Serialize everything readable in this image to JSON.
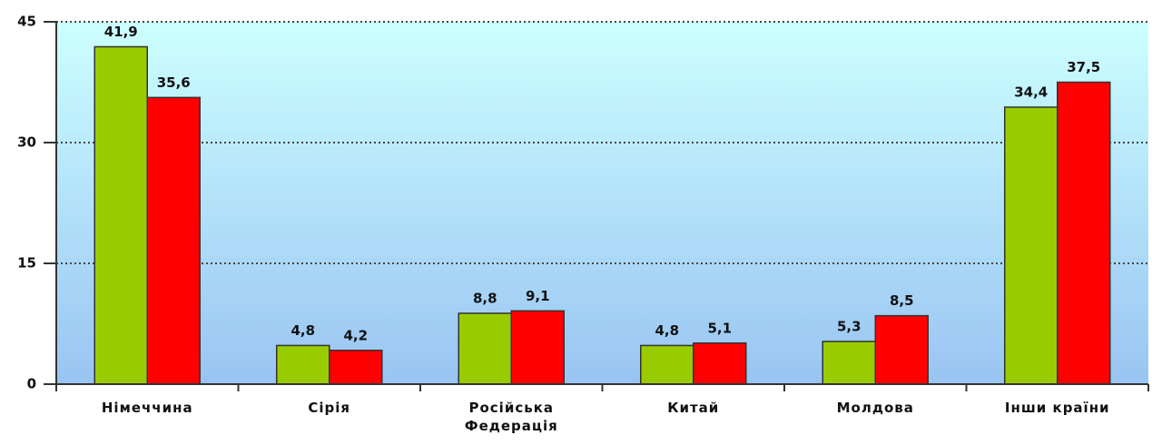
{
  "chart_data": {
    "type": "bar",
    "categories": [
      "Німеччина",
      "Сірія",
      "Російська Федерація",
      "Китай",
      "Молдова",
      "Інши країни"
    ],
    "series": [
      {
        "color": "#99cc00",
        "values": [
          41.9,
          4.8,
          8.8,
          4.8,
          5.3,
          34.4
        ],
        "value_labels": [
          "41,9",
          "4,8",
          "8,8",
          "4,8",
          "5,3",
          "34,4"
        ]
      },
      {
        "color": "#ff0000",
        "values": [
          35.6,
          4.2,
          9.1,
          5.1,
          8.5,
          37.5
        ],
        "value_labels": [
          "35,6",
          "4,2",
          "9,1",
          "5,1",
          "8,5",
          "37,5"
        ]
      }
    ],
    "ylim": [
      0,
      45
    ],
    "yticks": [
      0,
      15,
      30,
      45
    ],
    "grid": true
  }
}
